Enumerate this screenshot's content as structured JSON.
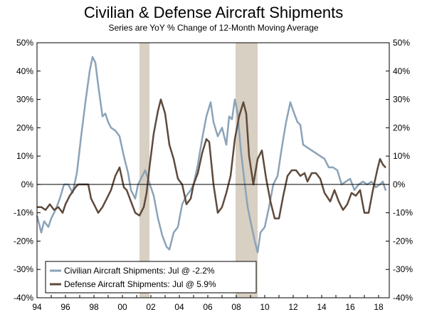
{
  "chart_data": {
    "type": "line",
    "title": "Civilian & Defense Aircraft Shipments",
    "subtitle": "Series are YoY % Change of 12-Month Moving Average",
    "xlim": [
      1994,
      2018.75
    ],
    "ylim": [
      -40,
      50
    ],
    "x_ticks": [
      1994,
      1996,
      1998,
      2000,
      2002,
      2004,
      2006,
      2008,
      2010,
      2012,
      2014,
      2016,
      2018
    ],
    "x_tick_labels": [
      "94",
      "96",
      "98",
      "00",
      "02",
      "04",
      "06",
      "08",
      "10",
      "12",
      "14",
      "16",
      "18"
    ],
    "y_ticks": [
      -40,
      -30,
      -20,
      -10,
      0,
      10,
      20,
      30,
      40,
      50
    ],
    "y_tick_labels": [
      "-40%",
      "-30%",
      "-20%",
      "-10%",
      "0%",
      "10%",
      "20%",
      "30%",
      "40%",
      "50%"
    ],
    "recession_bands": [
      [
        2001.2,
        2001.9
      ],
      [
        2007.95,
        2009.5
      ]
    ],
    "legend_position": "bottom-left",
    "grid": false,
    "series": [
      {
        "name": "Civilian Aircraft Shipments: Jul @ -2.2%",
        "color": "#8ba3b8",
        "points": [
          [
            1994.0,
            -11
          ],
          [
            1994.3,
            -17
          ],
          [
            1994.5,
            -13
          ],
          [
            1994.8,
            -15
          ],
          [
            1995.0,
            -12
          ],
          [
            1995.3,
            -9
          ],
          [
            1995.6,
            -5
          ],
          [
            1995.9,
            0
          ],
          [
            1996.2,
            0
          ],
          [
            1996.5,
            -3
          ],
          [
            1996.8,
            4
          ],
          [
            1997.1,
            17
          ],
          [
            1997.4,
            29
          ],
          [
            1997.7,
            40
          ],
          [
            1997.9,
            45
          ],
          [
            1998.1,
            43
          ],
          [
            1998.3,
            35
          ],
          [
            1998.6,
            24
          ],
          [
            1998.8,
            25
          ],
          [
            1999.0,
            22
          ],
          [
            1999.2,
            20
          ],
          [
            1999.5,
            19
          ],
          [
            1999.8,
            17
          ],
          [
            2000.1,
            10
          ],
          [
            2000.4,
            4
          ],
          [
            2000.6,
            -2
          ],
          [
            2000.9,
            -5
          ],
          [
            2001.1,
            0
          ],
          [
            2001.3,
            2
          ],
          [
            2001.6,
            5
          ],
          [
            2001.8,
            2
          ],
          [
            2002.0,
            -1
          ],
          [
            2002.2,
            -4
          ],
          [
            2002.5,
            -12
          ],
          [
            2002.8,
            -18
          ],
          [
            2003.1,
            -22
          ],
          [
            2003.3,
            -23
          ],
          [
            2003.6,
            -17
          ],
          [
            2003.9,
            -15
          ],
          [
            2004.2,
            -7
          ],
          [
            2004.5,
            -4
          ],
          [
            2004.8,
            -2
          ],
          [
            2005.0,
            0
          ],
          [
            2005.3,
            7
          ],
          [
            2005.6,
            16
          ],
          [
            2005.9,
            24
          ],
          [
            2006.2,
            29
          ],
          [
            2006.4,
            22
          ],
          [
            2006.7,
            17
          ],
          [
            2007.0,
            20
          ],
          [
            2007.3,
            14
          ],
          [
            2007.5,
            24
          ],
          [
            2007.7,
            23
          ],
          [
            2007.9,
            30
          ],
          [
            2008.1,
            25
          ],
          [
            2008.3,
            13
          ],
          [
            2008.6,
            0
          ],
          [
            2008.8,
            -8
          ],
          [
            2009.0,
            -13
          ],
          [
            2009.3,
            -20
          ],
          [
            2009.5,
            -24
          ],
          [
            2009.7,
            -17
          ],
          [
            2010.0,
            -15
          ],
          [
            2010.3,
            -8
          ],
          [
            2010.6,
            0
          ],
          [
            2010.9,
            3
          ],
          [
            2011.2,
            13
          ],
          [
            2011.5,
            22
          ],
          [
            2011.8,
            29
          ],
          [
            2012.0,
            26
          ],
          [
            2012.3,
            22
          ],
          [
            2012.5,
            21
          ],
          [
            2012.7,
            14
          ],
          [
            2013.0,
            13
          ],
          [
            2013.3,
            12
          ],
          [
            2013.6,
            11
          ],
          [
            2013.9,
            10
          ],
          [
            2014.2,
            9
          ],
          [
            2014.5,
            6
          ],
          [
            2014.8,
            6
          ],
          [
            2015.1,
            5
          ],
          [
            2015.4,
            0
          ],
          [
            2015.7,
            1
          ],
          [
            2016.0,
            2
          ],
          [
            2016.3,
            -2
          ],
          [
            2016.6,
            0
          ],
          [
            2016.9,
            1
          ],
          [
            2017.2,
            0
          ],
          [
            2017.5,
            1
          ],
          [
            2017.8,
            -1
          ],
          [
            2018.1,
            0
          ],
          [
            2018.3,
            1
          ],
          [
            2018.5,
            -2.2
          ]
        ]
      },
      {
        "name": "Defense Aircraft Shipments: Jul @ 5.9%",
        "color": "#5e4a3c",
        "points": [
          [
            1994.0,
            -8
          ],
          [
            1994.3,
            -8
          ],
          [
            1994.6,
            -9
          ],
          [
            1994.9,
            -7
          ],
          [
            1995.2,
            -9
          ],
          [
            1995.5,
            -8
          ],
          [
            1995.8,
            -10
          ],
          [
            1996.0,
            -7
          ],
          [
            1996.3,
            -4
          ],
          [
            1996.7,
            -1
          ],
          [
            1996.9,
            0
          ],
          [
            1997.1,
            0
          ],
          [
            1997.3,
            0
          ],
          [
            1997.6,
            0
          ],
          [
            1997.8,
            -5
          ],
          [
            1998.0,
            -7
          ],
          [
            1998.3,
            -10
          ],
          [
            1998.6,
            -8
          ],
          [
            1998.9,
            -5
          ],
          [
            1999.2,
            -2
          ],
          [
            1999.5,
            3
          ],
          [
            1999.8,
            6
          ],
          [
            2000.1,
            -1
          ],
          [
            2000.3,
            -2
          ],
          [
            2000.6,
            -6
          ],
          [
            2000.9,
            -10
          ],
          [
            2001.2,
            -11
          ],
          [
            2001.5,
            -8
          ],
          [
            2001.7,
            -3
          ],
          [
            2001.9,
            6
          ],
          [
            2002.2,
            18
          ],
          [
            2002.5,
            26
          ],
          [
            2002.7,
            30
          ],
          [
            2003.0,
            25
          ],
          [
            2003.3,
            14
          ],
          [
            2003.6,
            9
          ],
          [
            2003.9,
            2
          ],
          [
            2004.2,
            0
          ],
          [
            2004.5,
            -7
          ],
          [
            2004.8,
            -5
          ],
          [
            2005.0,
            0
          ],
          [
            2005.3,
            4
          ],
          [
            2005.6,
            11
          ],
          [
            2005.9,
            16
          ],
          [
            2006.1,
            15
          ],
          [
            2006.4,
            0
          ],
          [
            2006.7,
            -10
          ],
          [
            2007.0,
            -8
          ],
          [
            2007.3,
            -3
          ],
          [
            2007.6,
            3
          ],
          [
            2007.9,
            16
          ],
          [
            2008.2,
            24
          ],
          [
            2008.5,
            29
          ],
          [
            2008.7,
            25
          ],
          [
            2008.9,
            10
          ],
          [
            2009.2,
            0
          ],
          [
            2009.5,
            9
          ],
          [
            2009.8,
            12
          ],
          [
            2010.1,
            2
          ],
          [
            2010.4,
            -6
          ],
          [
            2010.7,
            -12
          ],
          [
            2011.0,
            -12
          ],
          [
            2011.3,
            -4
          ],
          [
            2011.6,
            3
          ],
          [
            2011.9,
            5
          ],
          [
            2012.2,
            5
          ],
          [
            2012.5,
            3
          ],
          [
            2012.8,
            4
          ],
          [
            2013.0,
            1
          ],
          [
            2013.3,
            4
          ],
          [
            2013.6,
            4
          ],
          [
            2013.9,
            2
          ],
          [
            2014.2,
            -3
          ],
          [
            2014.6,
            -6
          ],
          [
            2014.9,
            -2
          ],
          [
            2015.2,
            -6
          ],
          [
            2015.5,
            -9
          ],
          [
            2015.8,
            -7
          ],
          [
            2016.1,
            -3
          ],
          [
            2016.4,
            -4
          ],
          [
            2016.7,
            -2
          ],
          [
            2017.0,
            -10
          ],
          [
            2017.3,
            -10
          ],
          [
            2017.6,
            -2
          ],
          [
            2017.9,
            5
          ],
          [
            2018.1,
            9
          ],
          [
            2018.3,
            7
          ],
          [
            2018.5,
            5.9
          ]
        ]
      }
    ]
  }
}
